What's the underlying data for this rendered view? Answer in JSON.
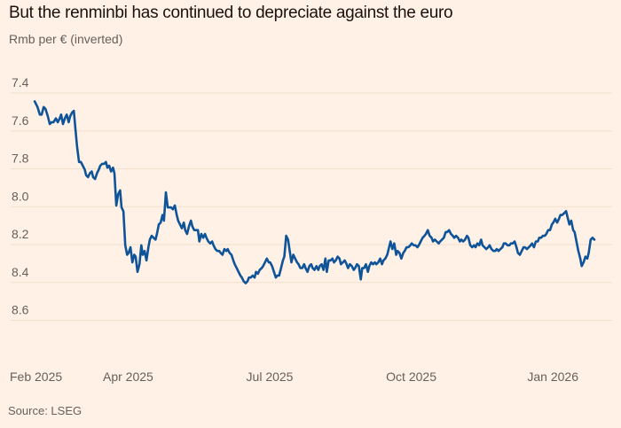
{
  "chart_data": {
    "type": "line",
    "title": "But the renminbi has continued to depreciate against the euro",
    "subtitle": "Rmb per € (inverted)",
    "source": "Source: LSEG",
    "xlabel": "",
    "ylabel": "Rmb per € (inverted)",
    "y_inverted": true,
    "ylim": [
      7.4,
      8.6
    ],
    "yticks": [
      "7.4",
      "7.6",
      "7.8",
      "8.0",
      "8.2",
      "8.4",
      "8.6"
    ],
    "ytick_values": [
      7.4,
      7.6,
      7.8,
      8.0,
      8.2,
      8.4,
      8.6
    ],
    "xlim_months_since_feb_2025": [
      0,
      12.4
    ],
    "xticks": [
      {
        "label": "Feb 2025",
        "month": 0
      },
      {
        "label": "Apr 2025",
        "month": 2
      },
      {
        "label": "Jul 2025",
        "month": 5
      },
      {
        "label": "Oct 2025",
        "month": 8
      },
      {
        "label": "Jan 2026",
        "month": 11
      }
    ],
    "grid": false,
    "color": "#0f5499",
    "series": [
      {
        "name": "Rmb per €",
        "x_months_since_feb_2025": [
          0.02,
          0.08,
          0.13,
          0.17,
          0.21,
          0.25,
          0.3,
          0.34,
          0.38,
          0.42,
          0.47,
          0.51,
          0.55,
          0.58,
          0.62,
          0.66,
          0.7,
          0.74,
          0.77,
          0.81,
          0.85,
          0.89,
          0.92,
          0.96,
          1.0,
          1.04,
          1.08,
          1.11,
          1.15,
          1.19,
          1.23,
          1.26,
          1.3,
          1.34,
          1.38,
          1.41,
          1.45,
          1.49,
          1.53,
          1.56,
          1.6,
          1.64,
          1.68,
          1.71,
          1.75,
          1.79,
          1.83,
          1.86,
          1.9,
          1.94,
          1.98,
          2.01,
          2.05,
          2.09,
          2.13,
          2.16,
          2.2,
          2.24,
          2.28,
          2.31,
          2.35,
          2.39,
          2.43,
          2.46,
          2.5,
          2.54,
          2.58,
          2.61,
          2.65,
          2.69,
          2.73,
          2.76,
          2.8,
          2.84,
          2.88,
          2.91,
          2.95,
          2.99,
          3.03,
          3.06,
          3.1,
          3.14,
          3.18,
          3.21,
          3.25,
          3.29,
          3.33,
          3.36,
          3.4,
          3.44,
          3.48,
          3.51,
          3.55,
          3.59,
          3.63,
          3.66,
          3.7,
          3.74,
          3.78,
          3.81,
          3.85,
          3.89,
          3.93,
          3.96,
          4.0,
          4.04,
          4.08,
          4.11,
          4.15,
          4.19,
          4.23,
          4.26,
          4.3,
          4.34,
          4.38,
          4.41,
          4.45,
          4.49,
          4.53,
          4.56,
          4.6,
          4.64,
          4.68,
          4.71,
          4.75,
          4.79,
          4.83,
          4.86,
          4.9,
          4.94,
          4.98,
          5.01,
          5.05,
          5.09,
          5.13,
          5.16,
          5.2,
          5.24,
          5.28,
          5.31,
          5.35,
          5.39,
          5.43,
          5.46,
          5.5,
          5.54,
          5.58,
          5.61,
          5.65,
          5.69,
          5.73,
          5.76,
          5.8,
          5.84,
          5.88,
          5.91,
          5.95,
          5.99,
          6.03,
          6.06,
          6.1,
          6.14,
          6.18,
          6.21,
          6.25,
          6.29,
          6.33,
          6.36,
          6.4,
          6.44,
          6.48,
          6.51,
          6.55,
          6.59,
          6.63,
          6.66,
          6.7,
          6.74,
          6.78,
          6.81,
          6.85,
          6.89,
          6.93,
          6.96,
          7.0,
          7.04,
          7.08,
          7.11,
          7.15,
          7.19,
          7.23,
          7.26,
          7.3,
          7.34,
          7.38,
          7.41,
          7.45,
          7.49,
          7.53,
          7.56,
          7.6,
          7.64,
          7.68,
          7.71,
          7.75,
          7.79,
          7.83,
          7.86,
          7.9,
          7.94,
          7.98,
          8.01,
          8.05,
          8.09,
          8.13,
          8.16,
          8.2,
          8.24,
          8.28,
          8.31,
          8.35,
          8.39,
          8.43,
          8.46,
          8.5,
          8.54,
          8.58,
          8.61,
          8.65,
          8.69,
          8.73,
          8.76,
          8.8,
          8.84,
          8.88,
          8.91,
          8.95,
          8.99,
          9.03,
          9.06,
          9.1,
          9.14,
          9.18,
          9.21,
          9.25,
          9.29,
          9.33,
          9.36,
          9.4,
          9.44,
          9.48,
          9.51,
          9.55,
          9.59,
          9.63,
          9.66,
          9.7,
          9.74,
          9.78,
          9.81,
          9.85,
          9.89,
          9.93,
          9.96,
          10.0,
          10.04,
          10.08,
          10.11,
          10.15,
          10.19,
          10.23,
          10.26,
          10.3,
          10.34,
          10.38,
          10.41,
          10.45,
          10.49,
          10.53,
          10.56,
          10.6,
          10.64,
          10.68,
          10.71,
          10.75,
          10.79,
          10.83,
          10.86,
          10.9,
          10.94,
          10.98,
          11.01,
          11.05,
          11.09,
          11.13,
          11.16,
          11.2,
          11.24,
          11.28,
          11.31,
          11.35,
          11.39,
          11.43,
          11.46,
          11.5,
          11.54,
          11.58,
          11.61,
          11.65,
          11.69,
          11.73,
          11.76,
          11.8,
          11.84,
          11.88,
          11.91,
          11.95,
          11.99,
          12.03,
          12.06
        ],
        "values": [
          7.5,
          7.53,
          7.57,
          7.57,
          7.53,
          7.54,
          7.58,
          7.62,
          7.61,
          7.61,
          7.59,
          7.61,
          7.59,
          7.57,
          7.62,
          7.59,
          7.57,
          7.61,
          7.58,
          7.56,
          7.55,
          7.66,
          7.74,
          7.82,
          7.82,
          7.84,
          7.86,
          7.89,
          7.9,
          7.88,
          7.87,
          7.9,
          7.91,
          7.88,
          7.86,
          7.84,
          7.83,
          7.83,
          7.82,
          7.85,
          7.84,
          7.87,
          7.85,
          7.88,
          8.05,
          7.99,
          7.97,
          8.06,
          8.08,
          8.26,
          8.31,
          8.3,
          8.27,
          8.35,
          8.31,
          8.32,
          8.4,
          8.36,
          8.26,
          8.31,
          8.29,
          8.34,
          8.27,
          8.23,
          8.21,
          8.22,
          8.23,
          8.2,
          8.15,
          8.14,
          8.1,
          8.13,
          7.98,
          8.06,
          8.06,
          8.06,
          8.07,
          8.05,
          8.1,
          8.13,
          8.15,
          8.17,
          8.14,
          8.18,
          8.2,
          8.16,
          8.13,
          8.16,
          8.18,
          8.18,
          8.18,
          8.24,
          8.2,
          8.22,
          8.2,
          8.22,
          8.24,
          8.25,
          8.24,
          8.26,
          8.28,
          8.29,
          8.29,
          8.3,
          8.31,
          8.28,
          8.29,
          8.28,
          8.3,
          8.31,
          8.34,
          8.36,
          8.38,
          8.4,
          8.42,
          8.43,
          8.45,
          8.46,
          8.45,
          8.43,
          8.43,
          8.42,
          8.43,
          8.4,
          8.41,
          8.39,
          8.38,
          8.37,
          8.35,
          8.33,
          8.35,
          8.35,
          8.37,
          8.4,
          8.43,
          8.42,
          8.42,
          8.38,
          8.34,
          8.32,
          8.21,
          8.23,
          8.3,
          8.35,
          8.31,
          8.33,
          8.35,
          8.36,
          8.38,
          8.38,
          8.36,
          8.38,
          8.4,
          8.37,
          8.36,
          8.38,
          8.39,
          8.37,
          8.39,
          8.37,
          8.36,
          8.39,
          8.33,
          8.4,
          8.34,
          8.34,
          8.33,
          8.35,
          8.34,
          8.32,
          8.33,
          8.36,
          8.35,
          8.34,
          8.36,
          8.38,
          8.36,
          8.37,
          8.39,
          8.38,
          8.36,
          8.37,
          8.44,
          8.38,
          8.38,
          8.36,
          8.4,
          8.37,
          8.35,
          8.36,
          8.35,
          8.36,
          8.35,
          8.33,
          8.36,
          8.34,
          8.33,
          8.31,
          8.27,
          8.24,
          8.28,
          8.25,
          8.31,
          8.29,
          8.3,
          8.33,
          8.3,
          8.29,
          8.27,
          8.27,
          8.26,
          8.25,
          8.26,
          8.26,
          8.27,
          8.26,
          8.24,
          8.22,
          8.21,
          8.2,
          8.18,
          8.21,
          8.22,
          8.24,
          8.23,
          8.24,
          8.25,
          8.24,
          8.23,
          8.22,
          8.19,
          8.19,
          8.18,
          8.2,
          8.21,
          8.22,
          8.21,
          8.22,
          8.24,
          8.23,
          8.24,
          8.23,
          8.21,
          8.22,
          8.26,
          8.27,
          8.26,
          8.27,
          8.25,
          8.26,
          8.23,
          8.26,
          8.27,
          8.28,
          8.27,
          8.26,
          8.28,
          8.29,
          8.29,
          8.28,
          8.29,
          8.28,
          8.27,
          8.25,
          8.25,
          8.26,
          8.26,
          8.25,
          8.25,
          8.24,
          8.27,
          8.3,
          8.31,
          8.29,
          8.27,
          8.27,
          8.28,
          8.27,
          8.26,
          8.25,
          8.27,
          8.24,
          8.24,
          8.22,
          8.22,
          8.21,
          8.21,
          8.2,
          8.18,
          8.18,
          8.15,
          8.14,
          8.12,
          8.14,
          8.12,
          8.1,
          8.1,
          8.09,
          8.08,
          8.11,
          8.15,
          8.13,
          8.18,
          8.19,
          8.24,
          8.29,
          8.33,
          8.37,
          8.35,
          8.32,
          8.33,
          8.3,
          8.23,
          8.22,
          8.23
        ]
      }
    ]
  }
}
